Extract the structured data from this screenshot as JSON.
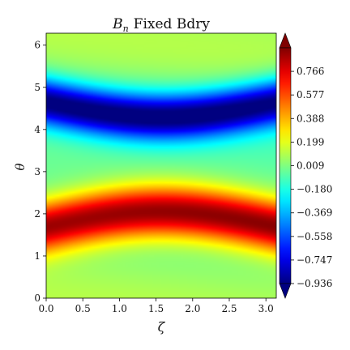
{
  "chart_data": {
    "type": "heatmap",
    "title": {
      "symbol": "B",
      "subscript": "n",
      "text": "Fixed Bdry"
    },
    "xlabel": "ζ",
    "ylabel": "θ",
    "xlim": [
      0.0,
      3.1416
    ],
    "ylim": [
      0.0,
      6.2832
    ],
    "xticks": [
      0.0,
      0.5,
      1.0,
      1.5,
      2.0,
      2.5,
      3.0
    ],
    "xtick_labels": [
      "0.0",
      "0.5",
      "1.0",
      "1.5",
      "2.0",
      "2.5",
      "3.0"
    ],
    "yticks": [
      0,
      1,
      2,
      3,
      4,
      5,
      6
    ],
    "ytick_labels": [
      "0",
      "1",
      "2",
      "3",
      "4",
      "5",
      "6"
    ],
    "colormap": "jet",
    "value_range": [
      -0.936,
      0.955
    ],
    "colorbar": {
      "extend": "both",
      "ticks": [
        0.766,
        0.577,
        0.388,
        0.199,
        0.009,
        -0.18,
        -0.369,
        -0.558,
        -0.747,
        -0.936
      ],
      "tick_labels": [
        "0.766",
        "0.577",
        "0.388",
        "0.199",
        "0.009",
        "−0.180",
        "−0.369",
        "−0.558",
        "−0.747",
        "−0.936"
      ]
    },
    "features": [
      {
        "kind": "max-band",
        "theta_center_at_edges": 1.7,
        "theta_center_at_zeta_1.6": 2.05,
        "peak_value": 0.95
      },
      {
        "kind": "min-band",
        "theta_center_at_edges": 4.65,
        "theta_center_at_zeta_1.6": 4.3,
        "peak_value": -0.93
      }
    ]
  }
}
